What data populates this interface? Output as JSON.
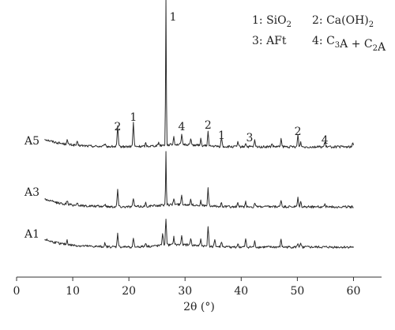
{
  "chart_data": {
    "type": "line",
    "title": "",
    "xlabel": "2θ (°)",
    "ylabel": "",
    "xlim": [
      0,
      65
    ],
    "xticks": [
      0,
      10,
      20,
      30,
      40,
      50,
      60
    ],
    "x_range_data": [
      5,
      60
    ],
    "y_axis_shown": false,
    "grid": false,
    "legend": {
      "placement": "top-right",
      "entries": [
        {
          "id": "1",
          "text": "1: SiO",
          "sub": "2"
        },
        {
          "id": "2",
          "text": "2: Ca(OH)",
          "sub": "2"
        },
        {
          "id": "3",
          "text": "3: AFt"
        },
        {
          "id": "4",
          "text": "4: C",
          "sub": "3",
          "rest": "A + C",
          "sub2": "2",
          "tail": "A"
        }
      ]
    },
    "series": [
      {
        "name": "A5",
        "peaks": [
          {
            "x": 9.0,
            "h": 6
          },
          {
            "x": 10.8,
            "h": 4
          },
          {
            "x": 15.7,
            "h": 3
          },
          {
            "x": 18.0,
            "h": 26
          },
          {
            "x": 20.8,
            "h": 31
          },
          {
            "x": 23.0,
            "h": 4
          },
          {
            "x": 25.3,
            "h": 4
          },
          {
            "x": 26.6,
            "h": 185
          },
          {
            "x": 28.0,
            "h": 10
          },
          {
            "x": 29.4,
            "h": 13
          },
          {
            "x": 31.0,
            "h": 8
          },
          {
            "x": 32.8,
            "h": 8
          },
          {
            "x": 34.1,
            "h": 18
          },
          {
            "x": 36.5,
            "h": 12
          },
          {
            "x": 39.4,
            "h": 6
          },
          {
            "x": 40.8,
            "h": 5
          },
          {
            "x": 42.4,
            "h": 8
          },
          {
            "x": 45.5,
            "h": 4
          },
          {
            "x": 47.1,
            "h": 10
          },
          {
            "x": 50.1,
            "h": 15
          },
          {
            "x": 50.6,
            "h": 6
          },
          {
            "x": 54.9,
            "h": 6
          },
          {
            "x": 59.9,
            "h": 5
          }
        ]
      },
      {
        "name": "A3",
        "peaks": [
          {
            "x": 9.0,
            "h": 5
          },
          {
            "x": 10.8,
            "h": 4
          },
          {
            "x": 15.7,
            "h": 3
          },
          {
            "x": 18.0,
            "h": 22
          },
          {
            "x": 20.8,
            "h": 11
          },
          {
            "x": 23.0,
            "h": 4
          },
          {
            "x": 26.6,
            "h": 68
          },
          {
            "x": 28.0,
            "h": 8
          },
          {
            "x": 29.4,
            "h": 12
          },
          {
            "x": 31.0,
            "h": 8
          },
          {
            "x": 32.8,
            "h": 6
          },
          {
            "x": 34.1,
            "h": 22
          },
          {
            "x": 36.5,
            "h": 6
          },
          {
            "x": 39.4,
            "h": 5
          },
          {
            "x": 40.8,
            "h": 6
          },
          {
            "x": 42.4,
            "h": 5
          },
          {
            "x": 47.1,
            "h": 9
          },
          {
            "x": 50.1,
            "h": 11
          },
          {
            "x": 50.6,
            "h": 6
          },
          {
            "x": 54.9,
            "h": 4
          }
        ]
      },
      {
        "name": "A1",
        "peaks": [
          {
            "x": 9.0,
            "h": 6
          },
          {
            "x": 15.7,
            "h": 4
          },
          {
            "x": 18.0,
            "h": 18
          },
          {
            "x": 20.8,
            "h": 10
          },
          {
            "x": 23.0,
            "h": 5
          },
          {
            "x": 26.0,
            "h": 16
          },
          {
            "x": 26.6,
            "h": 34
          },
          {
            "x": 28.0,
            "h": 10
          },
          {
            "x": 29.4,
            "h": 12
          },
          {
            "x": 31.0,
            "h": 9
          },
          {
            "x": 32.8,
            "h": 8
          },
          {
            "x": 34.1,
            "h": 26
          },
          {
            "x": 35.3,
            "h": 10
          },
          {
            "x": 36.5,
            "h": 7
          },
          {
            "x": 39.4,
            "h": 4
          },
          {
            "x": 40.8,
            "h": 10
          },
          {
            "x": 42.4,
            "h": 7
          },
          {
            "x": 47.1,
            "h": 10
          },
          {
            "x": 50.1,
            "h": 5
          },
          {
            "x": 50.6,
            "h": 4
          }
        ]
      }
    ],
    "annotations": [
      {
        "label": "1",
        "x": 26.6
      },
      {
        "label": "2",
        "x": 18.0
      },
      {
        "label": "1",
        "x": 20.8
      },
      {
        "label": "4",
        "x": 29.4
      },
      {
        "label": "2",
        "x": 34.1
      },
      {
        "label": "1",
        "x": 36.5
      },
      {
        "label": "3",
        "x": 41.5
      },
      {
        "label": "2",
        "x": 50.1
      },
      {
        "label": "4",
        "x": 54.9
      }
    ]
  }
}
